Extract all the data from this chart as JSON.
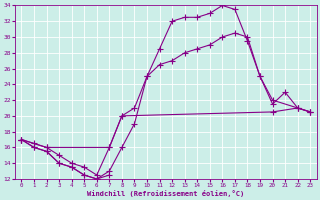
{
  "xlabel": "Windchill (Refroidissement éolien,°C)",
  "background_color": "#cceee8",
  "grid_color": "#ffffff",
  "line_color": "#880088",
  "xlim": [
    -0.5,
    23.5
  ],
  "ylim": [
    12,
    34
  ],
  "xticks": [
    0,
    1,
    2,
    3,
    4,
    5,
    6,
    7,
    8,
    9,
    10,
    11,
    12,
    13,
    14,
    15,
    16,
    17,
    18,
    19,
    20,
    21,
    22,
    23
  ],
  "yticks": [
    12,
    14,
    16,
    18,
    20,
    22,
    24,
    26,
    28,
    30,
    32,
    34
  ],
  "line1_x": [
    0,
    1,
    2,
    3,
    4,
    5,
    6,
    7,
    8,
    9,
    10,
    11,
    12,
    13,
    14,
    15,
    16,
    17,
    18,
    19,
    20,
    21,
    22,
    23
  ],
  "line1_y": [
    17,
    16,
    15.5,
    14,
    13.5,
    12.5,
    12,
    13,
    16,
    19,
    25,
    28.5,
    32,
    32.5,
    32.5,
    33,
    34,
    33.5,
    29.5,
    25,
    21.5,
    23,
    21,
    20.5
  ],
  "line2_x": [
    0,
    1,
    2,
    3,
    4,
    5,
    6,
    7,
    8,
    9,
    10,
    11,
    12,
    13,
    14,
    15,
    16,
    17,
    18,
    19,
    20,
    22,
    23
  ],
  "line2_y": [
    17,
    16.5,
    16,
    15,
    14,
    13.5,
    12.5,
    16,
    20,
    21,
    25,
    26.5,
    27,
    28,
    28.5,
    29,
    30,
    30.5,
    30,
    25,
    22,
    21,
    20.5
  ],
  "line3_x": [
    0,
    2,
    7,
    8,
    20,
    22,
    23
  ],
  "line3_y": [
    17,
    16,
    16,
    20,
    20.5,
    21,
    20.5
  ],
  "line4_x": [
    0,
    1,
    2,
    3,
    4,
    5,
    6,
    7
  ],
  "line4_y": [
    17,
    16,
    15.5,
    14,
    13.5,
    12.5,
    12,
    12.5
  ]
}
